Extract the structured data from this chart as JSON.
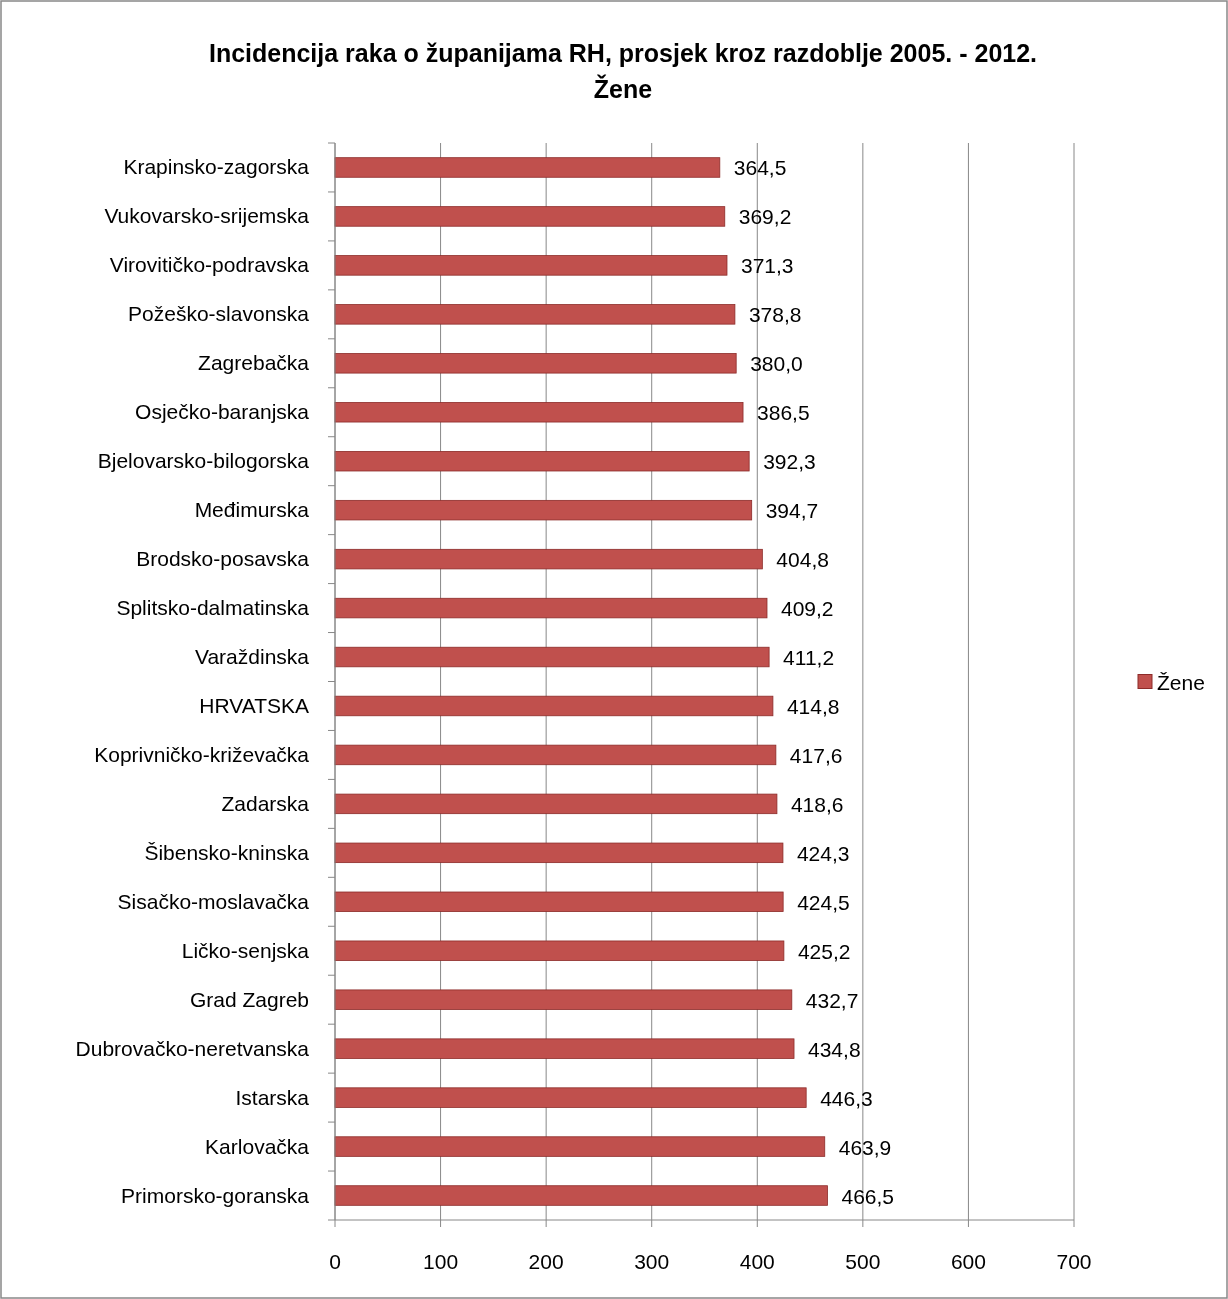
{
  "chart_data": {
    "type": "bar",
    "orientation": "horizontal",
    "title": "Incidencija raka o županijama RH, prosjek kroz razdoblje 2005. - 2012.",
    "subtitle": "Žene",
    "categories": [
      "Krapinsko-zagorska",
      "Vukovarsko-srijemska",
      "Virovitičko-podravska",
      "Požeško-slavonska",
      "Zagrebačka",
      "Osječko-baranjska",
      "Bjelovarsko-bilogorska",
      "Međimurska",
      "Brodsko-posavska",
      "Splitsko-dalmatinska",
      "Varaždinska",
      "HRVATSKA",
      "Koprivničko-križevačka",
      "Zadarska",
      "Šibensko-kninska",
      "Sisačko-moslavačka",
      "Ličko-senjska",
      "Grad Zagreb",
      "Dubrovačko-neretvanska",
      "Istarska",
      "Karlovačka",
      "Primorsko-goranska"
    ],
    "series": [
      {
        "name": "Žene",
        "color": "#c0504d",
        "values": [
          364.5,
          369.2,
          371.3,
          378.8,
          380.0,
          386.5,
          392.3,
          394.7,
          404.8,
          409.2,
          411.2,
          414.8,
          417.6,
          418.6,
          424.3,
          424.5,
          425.2,
          432.7,
          434.8,
          446.3,
          463.9,
          466.5
        ],
        "value_labels": [
          "364,5",
          "369,2",
          "371,3",
          "378,8",
          "380,0",
          "386,5",
          "392,3",
          "394,7",
          "404,8",
          "409,2",
          "411,2",
          "414,8",
          "417,6",
          "418,6",
          "424,3",
          "424,5",
          "425,2",
          "432,7",
          "434,8",
          "446,3",
          "463,9",
          "466,5"
        ]
      }
    ],
    "xlim": [
      0,
      700
    ],
    "xticks": [
      0,
      100,
      200,
      300,
      400,
      500,
      600,
      700
    ],
    "grid": "x",
    "legend": "right"
  }
}
